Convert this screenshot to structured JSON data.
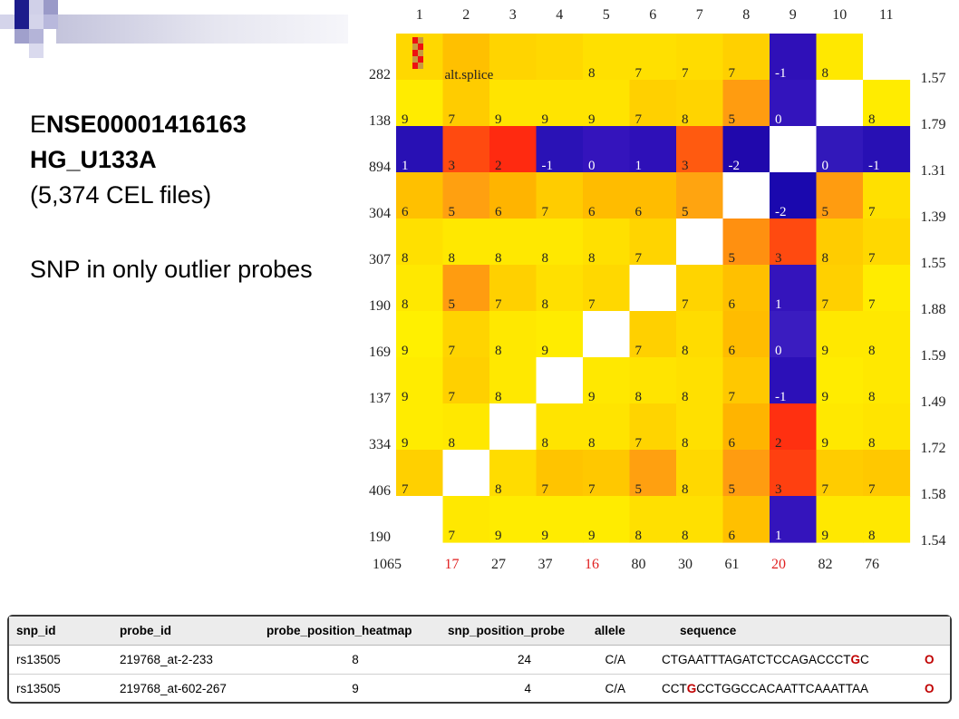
{
  "title": {
    "line1_prefix": "E",
    "line1_rest": "NSE00001416163",
    "line2": "HG_U133A",
    "line3": "(5,374 CEL files)"
  },
  "note": "SNP in only outlier probes",
  "chart_data": {
    "type": "heatmap",
    "columns": [
      "1",
      "2",
      "3",
      "4",
      "5",
      "6",
      "7",
      "8",
      "9",
      "10",
      "11"
    ],
    "row_labels": [
      "282",
      "138",
      "894",
      "304",
      "307",
      "190",
      "169",
      "137",
      "334",
      "406",
      "190"
    ],
    "row_right_labels": [
      "1.57",
      "1.79",
      "1.31",
      "1.39",
      "1.55",
      "1.88",
      "1.59",
      "1.49",
      "1.72",
      "1.58",
      "1.54"
    ],
    "col_bottom_labels": [
      "1065",
      "17",
      "27",
      "37",
      "16",
      "80",
      "30",
      "61",
      "20",
      "82",
      "76"
    ],
    "col_bottom_highlight": [
      false,
      true,
      false,
      false,
      true,
      false,
      false,
      false,
      true,
      false,
      false
    ],
    "cell_text": [
      [
        "",
        "",
        "",
        "",
        "8",
        "7",
        "7",
        "7",
        "-1",
        "8",
        ""
      ],
      [
        "9",
        "7",
        "9",
        "9",
        "9",
        "7",
        "8",
        "5",
        "0",
        "",
        "8"
      ],
      [
        "1",
        "3",
        "2",
        "-1",
        "0",
        "1",
        "3",
        "-2",
        "",
        "0",
        "-1"
      ],
      [
        "6",
        "5",
        "6",
        "7",
        "6",
        "6",
        "5",
        "",
        "-2",
        "5",
        "7"
      ],
      [
        "8",
        "8",
        "8",
        "8",
        "8",
        "7",
        "",
        "5",
        "3",
        "8",
        "7"
      ],
      [
        "8",
        "5",
        "7",
        "8",
        "7",
        "",
        "7",
        "6",
        "1",
        "7",
        "7"
      ],
      [
        "9",
        "7",
        "8",
        "9",
        "",
        "7",
        "8",
        "6",
        "0",
        "9",
        "8"
      ],
      [
        "9",
        "7",
        "8",
        "",
        "9",
        "8",
        "8",
        "7",
        "-1",
        "9",
        "8"
      ],
      [
        "9",
        "8",
        "",
        "8",
        "8",
        "7",
        "8",
        "6",
        "2",
        "9",
        "8"
      ],
      [
        "7",
        "",
        "8",
        "7",
        "7",
        "5",
        "8",
        "5",
        "3",
        "7",
        "7"
      ],
      [
        "",
        "7",
        "9",
        "9",
        "9",
        "8",
        "8",
        "6",
        "1",
        "9",
        "8"
      ]
    ],
    "cell_colors": [
      [
        "#ffd800",
        "#ffc000",
        "#ffd400",
        "#ffd800",
        "#ffe000",
        "#ffe000",
        "#ffdc00",
        "#ffd000",
        "#2f10b8",
        "#ffe800",
        "#ffffff"
      ],
      [
        "#ffec00",
        "#ffcc00",
        "#ffe400",
        "#ffe400",
        "#ffe400",
        "#ffd000",
        "#ffd400",
        "#ff9c10",
        "#3314bc",
        "#ffffff",
        "#ffec00"
      ],
      [
        "#2810b4",
        "#ff4a10",
        "#ff2a10",
        "#2a12b6",
        "#3414bc",
        "#2e10b8",
        "#ff5a10",
        "#2008ac",
        "#ffffff",
        "#3218ba",
        "#2810b4"
      ],
      [
        "#ffc000",
        "#ffa010",
        "#ffb400",
        "#ffcc00",
        "#ffbc00",
        "#ffbc00",
        "#ffa410",
        "#ffffff",
        "#1a08ae",
        "#ff9c10",
        "#ffe000"
      ],
      [
        "#ffe000",
        "#ffe800",
        "#ffe800",
        "#ffe800",
        "#ffe000",
        "#ffd400",
        "#ffffff",
        "#ff9010",
        "#ff4a10",
        "#ffcc00",
        "#ffd800"
      ],
      [
        "#ffe800",
        "#ff9c10",
        "#ffd000",
        "#ffe000",
        "#ffd800",
        "#ffffff",
        "#ffd400",
        "#ffc000",
        "#3414bc",
        "#ffd000",
        "#ffec00"
      ],
      [
        "#fff000",
        "#ffd400",
        "#ffe800",
        "#ffec00",
        "#ffffff",
        "#ffd000",
        "#ffdc00",
        "#ffbc00",
        "#3a1cc0",
        "#ffe800",
        "#ffe800"
      ],
      [
        "#ffec00",
        "#ffd000",
        "#ffe800",
        "#ffffff",
        "#ffe800",
        "#ffe400",
        "#ffe000",
        "#ffc800",
        "#2c10b8",
        "#ffec00",
        "#ffe800"
      ],
      [
        "#ffec00",
        "#ffe800",
        "#ffffff",
        "#ffe400",
        "#ffe400",
        "#ffd400",
        "#ffe000",
        "#ffb400",
        "#ff3010",
        "#ffe800",
        "#ffe400"
      ],
      [
        "#ffd000",
        "#ffffff",
        "#ffdc00",
        "#ffc400",
        "#ffc800",
        "#ffa010",
        "#ffd800",
        "#ff9c10",
        "#ff4010",
        "#ffcc00",
        "#ffc800"
      ],
      [
        "#ffffff",
        "#ffe800",
        "#ffec00",
        "#ffec00",
        "#ffec00",
        "#ffe000",
        "#ffe000",
        "#ffc000",
        "#3414bc",
        "#ffe800",
        "#ffe800"
      ]
    ],
    "annotations": [
      {
        "row": 0,
        "col": 1,
        "text": "alt.splice"
      }
    ],
    "colors": {
      "low": "#2010b0",
      "mid": "#ffd000",
      "high": "#ff2a10",
      "empty": "#ffffff",
      "highlight": "#ee1111"
    }
  },
  "table": {
    "headers": [
      "snp_id",
      "probe_id",
      "probe_position_heatmap",
      "snp_position_probe",
      "allele",
      "sequence"
    ],
    "rows": [
      {
        "snp_id": "rs13505",
        "probe_id": "219768_at-2-233",
        "probe_position_heatmap": "8",
        "snp_position_probe": "24",
        "allele": "C/A",
        "seq_before": "CTGAATTTAGATCTCCAGACCCT",
        "seq_snp": "G",
        "seq_after": "C",
        "flag": "O"
      },
      {
        "snp_id": "rs13505",
        "probe_id": "219768_at-602-267",
        "probe_position_heatmap": "9",
        "snp_position_probe": "4",
        "allele": "C/A",
        "seq_before": "CCT",
        "seq_snp": "G",
        "seq_after": "CCTGGCCACAATTCAAATTAA",
        "flag": "O"
      }
    ]
  }
}
